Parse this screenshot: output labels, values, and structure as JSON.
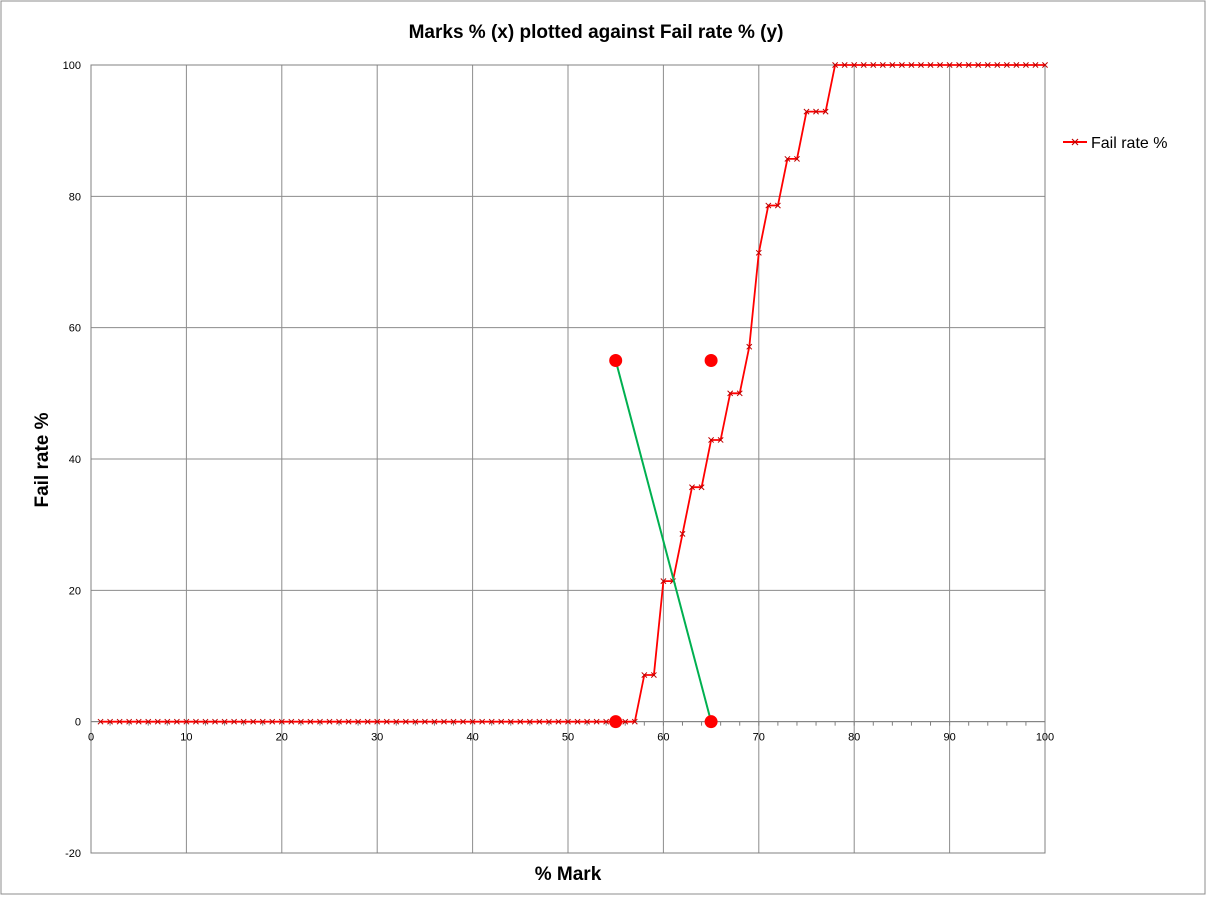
{
  "chart_data": {
    "type": "line",
    "title": "Marks % (x) plotted against Fail rate % (y)",
    "xlabel": "% Mark",
    "ylabel": "Fail rate %",
    "xlim": [
      0,
      100
    ],
    "ylim": [
      -20,
      100
    ],
    "x_ticks": [
      0,
      10,
      20,
      30,
      40,
      50,
      60,
      70,
      80,
      90,
      100
    ],
    "y_ticks": [
      -20,
      0,
      20,
      40,
      60,
      80,
      100
    ],
    "grid": true,
    "legend_position": "right",
    "series": [
      {
        "name": "Fail rate %",
        "color": "#ff0000",
        "marker": "x",
        "points": [
          [
            1,
            0
          ],
          [
            2,
            0
          ],
          [
            3,
            0
          ],
          [
            4,
            0
          ],
          [
            5,
            0
          ],
          [
            6,
            0
          ],
          [
            7,
            0
          ],
          [
            8,
            0
          ],
          [
            9,
            0
          ],
          [
            10,
            0
          ],
          [
            11,
            0
          ],
          [
            12,
            0
          ],
          [
            13,
            0
          ],
          [
            14,
            0
          ],
          [
            15,
            0
          ],
          [
            16,
            0
          ],
          [
            17,
            0
          ],
          [
            18,
            0
          ],
          [
            19,
            0
          ],
          [
            20,
            0
          ],
          [
            21,
            0
          ],
          [
            22,
            0
          ],
          [
            23,
            0
          ],
          [
            24,
            0
          ],
          [
            25,
            0
          ],
          [
            26,
            0
          ],
          [
            27,
            0
          ],
          [
            28,
            0
          ],
          [
            29,
            0
          ],
          [
            30,
            0
          ],
          [
            31,
            0
          ],
          [
            32,
            0
          ],
          [
            33,
            0
          ],
          [
            34,
            0
          ],
          [
            35,
            0
          ],
          [
            36,
            0
          ],
          [
            37,
            0
          ],
          [
            38,
            0
          ],
          [
            39,
            0
          ],
          [
            40,
            0
          ],
          [
            41,
            0
          ],
          [
            42,
            0
          ],
          [
            43,
            0
          ],
          [
            44,
            0
          ],
          [
            45,
            0
          ],
          [
            46,
            0
          ],
          [
            47,
            0
          ],
          [
            48,
            0
          ],
          [
            49,
            0
          ],
          [
            50,
            0
          ],
          [
            51,
            0
          ],
          [
            52,
            0
          ],
          [
            53,
            0
          ],
          [
            54,
            0
          ],
          [
            55,
            0
          ],
          [
            56,
            0
          ],
          [
            57,
            0
          ],
          [
            58,
            7.1
          ],
          [
            59,
            7.1
          ],
          [
            60,
            21.4
          ],
          [
            61,
            21.4
          ],
          [
            62,
            28.6
          ],
          [
            63,
            35.7
          ],
          [
            64,
            35.7
          ],
          [
            65,
            42.9
          ],
          [
            66,
            42.9
          ],
          [
            67,
            50
          ],
          [
            68,
            50
          ],
          [
            69,
            57.1
          ],
          [
            70,
            71.4
          ],
          [
            71,
            78.6
          ],
          [
            72,
            78.6
          ],
          [
            73,
            85.7
          ],
          [
            74,
            85.7
          ],
          [
            75,
            92.9
          ],
          [
            76,
            92.9
          ],
          [
            77,
            92.9
          ],
          [
            78,
            100
          ],
          [
            79,
            100
          ],
          [
            80,
            100
          ],
          [
            81,
            100
          ],
          [
            82,
            100
          ],
          [
            83,
            100
          ],
          [
            84,
            100
          ],
          [
            85,
            100
          ],
          [
            86,
            100
          ],
          [
            87,
            100
          ],
          [
            88,
            100
          ],
          [
            89,
            100
          ],
          [
            90,
            100
          ],
          [
            91,
            100
          ],
          [
            92,
            100
          ],
          [
            93,
            100
          ],
          [
            94,
            100
          ],
          [
            95,
            100
          ],
          [
            96,
            100
          ],
          [
            97,
            100
          ],
          [
            98,
            100
          ],
          [
            99,
            100
          ],
          [
            100,
            100
          ]
        ]
      }
    ],
    "annotation_line": {
      "color": "#00b050",
      "points": [
        [
          55,
          55
        ],
        [
          65,
          0
        ]
      ]
    },
    "annotation_dots": {
      "color": "#ff0000",
      "points": [
        [
          55,
          55
        ],
        [
          65,
          55
        ],
        [
          55,
          0
        ],
        [
          65,
          0
        ]
      ]
    }
  }
}
